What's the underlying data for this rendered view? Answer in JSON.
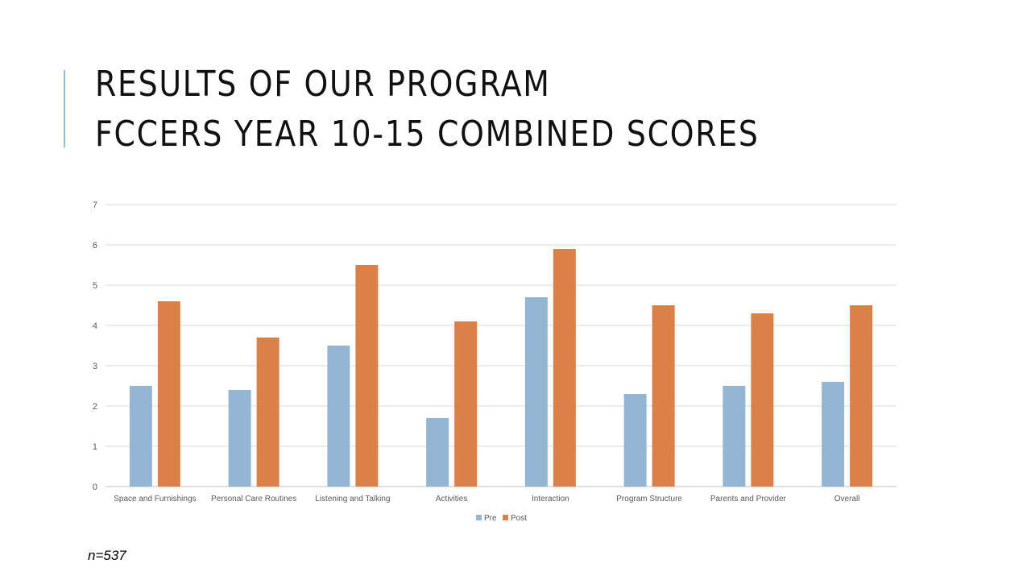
{
  "slide": {
    "title_line1": "RESULTS OF OUR PROGRAM",
    "title_line2": "FCCERS YEAR 10-15 COMBINED SCORES",
    "footnote": "n=537",
    "accent_color": "#8fc3d1"
  },
  "chart_data": {
    "type": "bar",
    "categories": [
      "Space and Furnishings",
      "Personal Care Routines",
      "Listening and Talking",
      "Activities",
      "Interaction",
      "Program Structure",
      "Parents and Provider",
      "Overall"
    ],
    "series": [
      {
        "name": "Pre",
        "color": "#95b6d3",
        "values": [
          2.5,
          2.4,
          3.5,
          1.7,
          4.7,
          2.3,
          2.5,
          2.6
        ]
      },
      {
        "name": "Post",
        "color": "#dc8049",
        "values": [
          4.6,
          3.7,
          5.5,
          4.1,
          5.9,
          4.5,
          4.3,
          4.5
        ]
      }
    ],
    "ylim": [
      0,
      7
    ],
    "yticks": [
      0,
      1,
      2,
      3,
      4,
      5,
      6,
      7
    ],
    "grid": true,
    "legend_position": "bottom"
  }
}
